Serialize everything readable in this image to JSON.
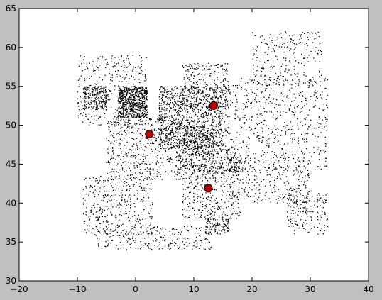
{
  "window": {
    "background": "#c0c0c0"
  },
  "chart_data": {
    "type": "scatter",
    "title": "",
    "xlabel": "",
    "ylabel": "",
    "xlim": [
      -20,
      40
    ],
    "ylim": [
      30,
      65
    ],
    "grid": false,
    "xticks": [
      -20,
      -10,
      0,
      10,
      20,
      30,
      40
    ],
    "yticks": [
      30,
      35,
      40,
      45,
      50,
      55,
      60,
      65
    ],
    "xtick_labels": [
      "−20",
      "−10",
      "0",
      "10",
      "20",
      "30",
      "40"
    ],
    "ytick_labels": [
      "30",
      "35",
      "40",
      "45",
      "50",
      "55",
      "60",
      "65"
    ],
    "plot_background": "#ffffff",
    "series": [
      {
        "marker": "dot",
        "color": "#000000",
        "regions": [
          {
            "x": [
              -10,
              2
            ],
            "y": [
              50,
              59
            ],
            "weight": 1.5
          },
          {
            "x": [
              -3,
              2
            ],
            "y": [
              51,
              55
            ],
            "weight": 2.5
          },
          {
            "x": [
              -9,
              -5
            ],
            "y": [
              52,
              55
            ],
            "weight": 0.8
          },
          {
            "x": [
              -5,
              8
            ],
            "y": [
              43,
              51
            ],
            "weight": 2.0
          },
          {
            "x": [
              4,
              15
            ],
            "y": [
              47,
              55
            ],
            "weight": 4.0
          },
          {
            "x": [
              8,
              16
            ],
            "y": [
              52,
              58
            ],
            "weight": 1.0
          },
          {
            "x": [
              8,
              14
            ],
            "y": [
              46,
              50
            ],
            "weight": 1.0
          },
          {
            "x": [
              7,
              18
            ],
            "y": [
              44,
              47
            ],
            "weight": 1.2
          },
          {
            "x": [
              15,
              33
            ],
            "y": [
              44,
              56
            ],
            "weight": 2.5
          },
          {
            "x": [
              20,
              32
            ],
            "y": [
              55,
              62
            ],
            "weight": 1.0
          },
          {
            "x": [
              16,
              30
            ],
            "y": [
              40,
              46
            ],
            "weight": 1.0
          },
          {
            "x": [
              26,
              33
            ],
            "y": [
              36,
              42
            ],
            "weight": 0.8
          },
          {
            "x": [
              -9,
              3
            ],
            "y": [
              36,
              43.5
            ],
            "weight": 1.5
          },
          {
            "x": [
              8,
              18
            ],
            "y": [
              38,
              45
            ],
            "weight": 1.5
          },
          {
            "x": [
              -7,
              13
            ],
            "y": [
              34,
              37
            ],
            "weight": 1.0
          },
          {
            "x": [
              12,
              16
            ],
            "y": [
              36,
              38
            ],
            "weight": 0.5
          }
        ]
      },
      {
        "marker": "circle",
        "color": "#c00000",
        "points": [
          {
            "x": 2.35,
            "y": 48.86
          },
          {
            "x": 13.4,
            "y": 52.52
          },
          {
            "x": 12.5,
            "y": 41.9
          }
        ]
      }
    ]
  }
}
